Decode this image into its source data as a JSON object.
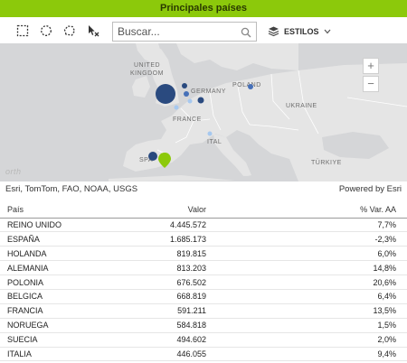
{
  "title": "Principales países",
  "toolbar": {
    "search_placeholder": "Buscar...",
    "styles_label": "ESTILOS",
    "icons": [
      "rectangle-select-icon",
      "circle-select-icon",
      "lasso-select-icon",
      "clear-selection-icon",
      "search-icon",
      "layers-icon",
      "chevron-down-icon"
    ]
  },
  "map": {
    "labels": {
      "united_kingdom_1": "UNITED",
      "united_kingdom_2": "KINGDOM",
      "france": "FRANCE",
      "germany": "GERMANY",
      "poland": "POLAND",
      "ukraine": "UKRAINE",
      "italy": "ITAL",
      "spain": "SPA",
      "turkey": "TÜRKIYE",
      "north_sea": "orth"
    },
    "zoom_in": "+",
    "zoom_out": "−",
    "colors": {
      "land": "#e5e5e5",
      "sea": "#d5d6d8",
      "marker_dark": "#2a4a7f",
      "marker_light": "#a6c8ef",
      "marker_selected": "#8cc90b"
    }
  },
  "attribution": {
    "sources": "Esri, TomTom, FAO, NOAA, USGS",
    "powered_by": "Powered by Esri"
  },
  "table": {
    "headers": [
      "País",
      "Valor",
      "% Var. AA"
    ],
    "rows": [
      {
        "pais": "REINO UNIDO",
        "valor": "4.445.572",
        "var": "7,7%"
      },
      {
        "pais": "ESPAÑA",
        "valor": "1.685.173",
        "var": "-2,3%"
      },
      {
        "pais": "HOLANDA",
        "valor": "819.815",
        "var": "6,0%"
      },
      {
        "pais": "ALEMANIA",
        "valor": "813.203",
        "var": "14,8%"
      },
      {
        "pais": "POLONIA",
        "valor": "676.502",
        "var": "20,6%"
      },
      {
        "pais": "BELGICA",
        "valor": "668.819",
        "var": "6,4%"
      },
      {
        "pais": "FRANCIA",
        "valor": "591.211",
        "var": "13,5%"
      },
      {
        "pais": "NORUEGA",
        "valor": "584.818",
        "var": "1,5%"
      },
      {
        "pais": "SUECIA",
        "valor": "494.602",
        "var": "2,0%"
      },
      {
        "pais": "ITALIA",
        "valor": "446.055",
        "var": "9,4%"
      }
    ]
  }
}
